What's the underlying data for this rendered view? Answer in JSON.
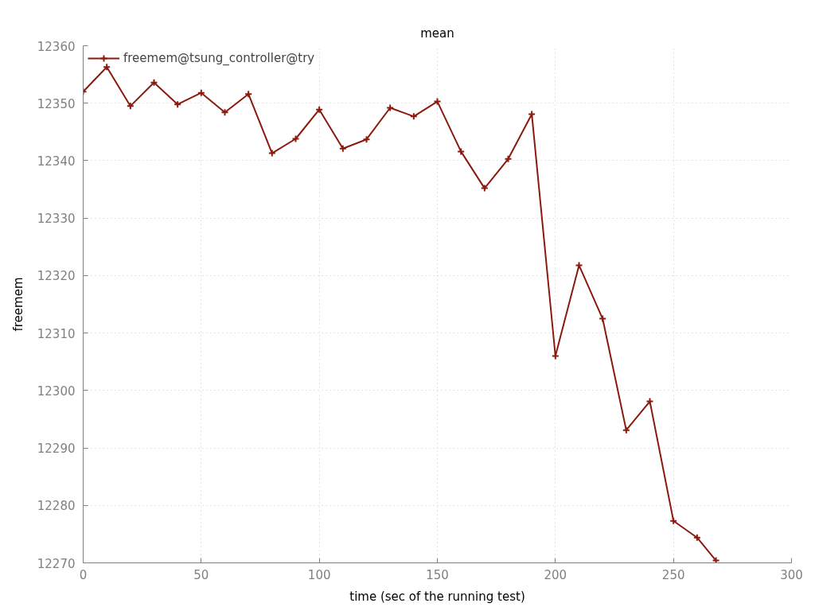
{
  "chart_data": {
    "type": "line",
    "title": "mean",
    "xlabel": "time (sec of the running test)",
    "ylabel": "freemem",
    "x": [
      0,
      10,
      20,
      30,
      40,
      50,
      60,
      70,
      80,
      90,
      100,
      110,
      120,
      130,
      140,
      150,
      160,
      170,
      180,
      190,
      200,
      210,
      220,
      230,
      240,
      250,
      260,
      268
    ],
    "series": [
      {
        "name": "freemem@tsung_controller@try",
        "color": "#8b1a0e",
        "values": [
          12352.0,
          12356.3,
          12349.5,
          12353.6,
          12349.8,
          12351.8,
          12348.4,
          12351.6,
          12341.3,
          12343.8,
          12348.9,
          12342.1,
          12343.7,
          12349.2,
          12347.7,
          12350.3,
          12341.6,
          12335.2,
          12340.3,
          12348.1,
          12306.0,
          12321.8,
          12312.5,
          12293.1,
          12298.1,
          12277.3,
          12274.4,
          12270.4
        ]
      }
    ],
    "xlim": [
      0,
      300
    ],
    "ylim": [
      12270,
      12360
    ],
    "xticks": [
      0,
      50,
      100,
      150,
      200,
      250,
      300
    ],
    "yticks": [
      12270,
      12280,
      12290,
      12300,
      12310,
      12320,
      12330,
      12340,
      12350,
      12360
    ],
    "grid": true,
    "legend": "top left",
    "marker": "cross",
    "line_style": "solid"
  }
}
